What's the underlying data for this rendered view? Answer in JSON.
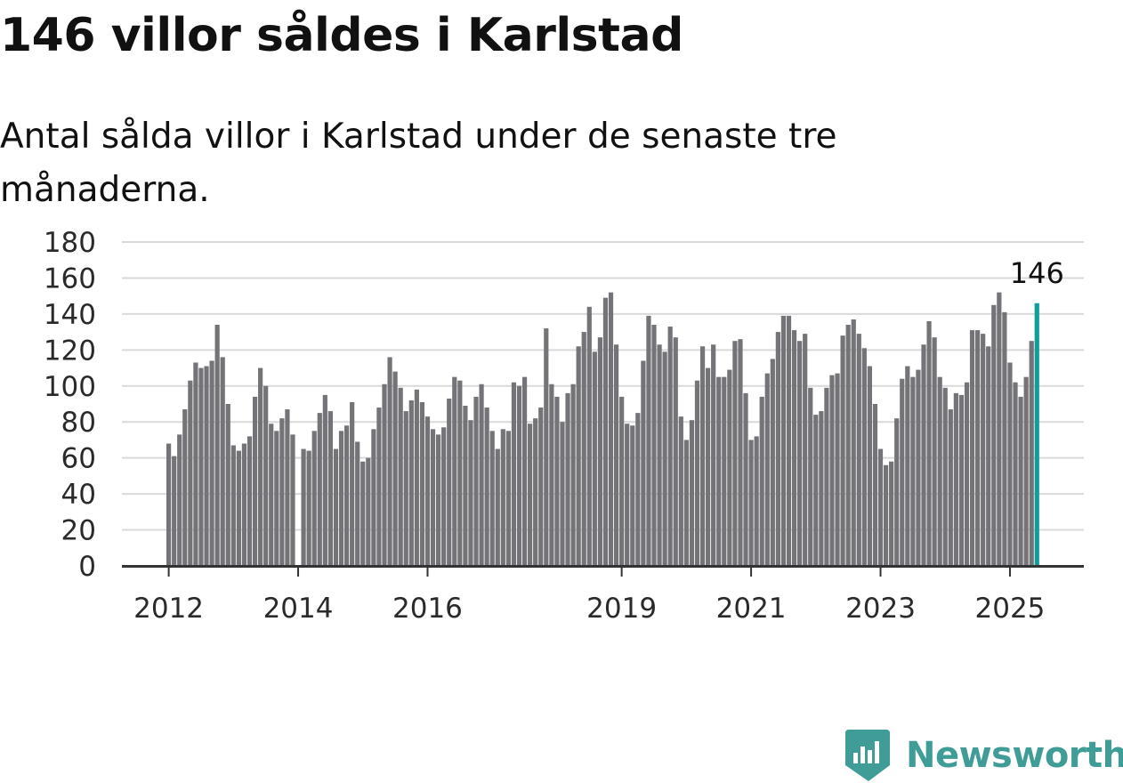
{
  "header": {
    "title": "146 villor såldes i Karlstad",
    "subtitle": "Antal sålda villor i Karlstad under de senaste tre månaderna."
  },
  "brand": {
    "name": "Newsworthy",
    "logo_icon": "newsworthy-logo-icon",
    "color": "#3f9c96"
  },
  "colors": {
    "bar": "#737378",
    "highlight": "#0f9e99",
    "grid": "#d9d9d9",
    "axis": "#333333",
    "tick_text": "#2a2a2a"
  },
  "chart_data": {
    "type": "bar",
    "title": "146 villor såldes i Karlstad",
    "subtitle": "Antal sålda villor i Karlstad under de senaste tre månaderna.",
    "xlabel": "",
    "ylabel": "",
    "ylim": [
      0,
      180
    ],
    "yticks": [
      0,
      20,
      40,
      60,
      80,
      100,
      120,
      140,
      160,
      180
    ],
    "grid": true,
    "legend": "none",
    "x_tick_labels": [
      "2012",
      "2014",
      "2016",
      "2019",
      "2021",
      "2023",
      "2025"
    ],
    "x_tick_months": [
      0,
      24,
      48,
      84,
      108,
      132,
      156
    ],
    "highlight_label": "146",
    "series": [
      {
        "values": [
          68,
          61,
          73,
          87,
          103,
          113,
          110,
          111,
          114,
          134,
          116,
          90,
          67,
          64,
          68,
          72,
          94,
          110,
          100,
          79,
          75,
          82,
          87,
          73,
          null,
          65,
          64,
          75,
          85,
          95,
          86,
          65,
          75,
          78,
          91,
          69,
          58,
          60,
          76,
          88,
          101,
          116,
          108,
          99,
          86,
          92,
          98,
          91,
          83,
          76,
          73,
          77,
          93,
          105,
          103,
          89,
          81,
          94,
          101,
          88,
          75,
          65,
          76,
          75,
          102,
          100,
          105,
          79,
          82,
          88,
          132,
          101,
          94,
          80,
          96,
          101,
          122,
          130,
          144,
          119,
          127,
          149,
          152,
          123,
          94,
          79,
          78,
          85,
          114,
          139,
          134,
          123,
          119,
          133,
          127,
          83,
          70,
          81,
          103,
          122,
          110,
          123,
          105,
          105,
          109,
          125,
          126,
          96,
          70,
          72,
          94,
          107,
          115,
          130,
          139,
          139,
          131,
          125,
          129,
          99,
          84,
          86,
          99,
          106,
          107,
          128,
          134,
          137,
          129,
          121,
          111,
          90,
          65,
          56,
          58,
          82,
          104,
          111,
          105,
          109,
          123,
          136,
          127,
          105,
          99,
          87,
          96,
          95,
          102,
          131,
          131,
          129,
          122,
          145,
          152,
          141,
          113,
          102,
          94,
          105,
          125,
          146
        ]
      }
    ]
  }
}
